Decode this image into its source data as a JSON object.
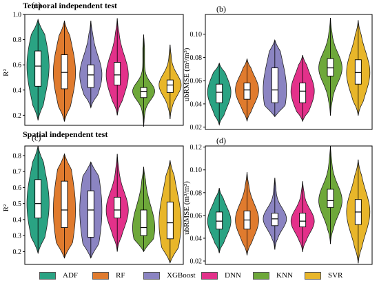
{
  "section_titles": {
    "temporal": "Temporal independent test",
    "spatial": "Spatial independent test"
  },
  "legend": [
    {
      "name": "ADF",
      "color": "#2aa383"
    },
    {
      "name": "RF",
      "color": "#e07b2e"
    },
    {
      "name": "XGBoost",
      "color": "#8b84c2"
    },
    {
      "name": "DNN",
      "color": "#e3318a"
    },
    {
      "name": "KNN",
      "color": "#6ea83a"
    },
    {
      "name": "SVR",
      "color": "#e8b62a"
    }
  ],
  "chart_data": [
    {
      "type": "violin",
      "panel": "(a)",
      "categories": [
        "ADF",
        "RF",
        "XGBoost",
        "DNN",
        "KNN",
        "SVR"
      ],
      "ylabel": "R²",
      "ylim": [
        0.12,
        1.0
      ],
      "yticks": [
        0.2,
        0.4,
        0.6,
        0.8,
        1.0
      ],
      "ytick_labels": [
        "0.2",
        "0.4",
        "0.6",
        "0.8",
        "1.0"
      ],
      "series": [
        {
          "min": 0.16,
          "q1": 0.43,
          "median": 0.59,
          "q3": 0.71,
          "max": 0.96
        },
        {
          "min": 0.15,
          "q1": 0.41,
          "median": 0.54,
          "q3": 0.68,
          "max": 0.95
        },
        {
          "min": 0.26,
          "q1": 0.42,
          "median": 0.52,
          "q3": 0.6,
          "max": 0.95
        },
        {
          "min": 0.2,
          "q1": 0.44,
          "median": 0.52,
          "q3": 0.62,
          "max": 0.97
        },
        {
          "min": 0.11,
          "q1": 0.34,
          "median": 0.39,
          "q3": 0.42,
          "max": 0.84
        },
        {
          "min": 0.17,
          "q1": 0.38,
          "median": 0.44,
          "q3": 0.48,
          "max": 0.76
        }
      ]
    },
    {
      "type": "violin",
      "panel": "(b)",
      "categories": [
        "ADF",
        "RF",
        "XGBoost",
        "DNN",
        "KNN",
        "SVR"
      ],
      "ylabel": "ubRMSE (m³/m³)",
      "ylim": [
        0.018,
        0.117
      ],
      "yticks": [
        0.02,
        0.04,
        0.06,
        0.08,
        0.1
      ],
      "ytick_labels": [
        "0.02",
        "0.04",
        "0.06",
        "0.08",
        "0.10"
      ],
      "series": [
        {
          "min": 0.022,
          "q1": 0.041,
          "median": 0.05,
          "q3": 0.057,
          "max": 0.075
        },
        {
          "min": 0.025,
          "q1": 0.044,
          "median": 0.052,
          "q3": 0.058,
          "max": 0.079
        },
        {
          "min": 0.029,
          "q1": 0.041,
          "median": 0.052,
          "q3": 0.071,
          "max": 0.095
        },
        {
          "min": 0.025,
          "q1": 0.041,
          "median": 0.051,
          "q3": 0.058,
          "max": 0.082
        },
        {
          "min": 0.03,
          "q1": 0.064,
          "median": 0.071,
          "q3": 0.079,
          "max": 0.114
        },
        {
          "min": 0.03,
          "q1": 0.057,
          "median": 0.067,
          "q3": 0.078,
          "max": 0.112
        }
      ]
    },
    {
      "type": "violin",
      "panel": "(c)",
      "categories": [
        "ADF",
        "RF",
        "XGBoost",
        "DNN",
        "KNN",
        "SVR"
      ],
      "ylabel": "R²",
      "ylim": [
        0.12,
        0.86
      ],
      "yticks": [
        0.2,
        0.3,
        0.4,
        0.5,
        0.6,
        0.7,
        0.8
      ],
      "ytick_labels": [
        "0.2",
        "0.3",
        "0.4",
        "0.5",
        "0.6",
        "0.7",
        "0.8"
      ],
      "series": [
        {
          "min": 0.19,
          "q1": 0.41,
          "median": 0.5,
          "q3": 0.65,
          "max": 0.86
        },
        {
          "min": 0.16,
          "q1": 0.35,
          "median": 0.46,
          "q3": 0.64,
          "max": 0.81
        },
        {
          "min": 0.16,
          "q1": 0.29,
          "median": 0.46,
          "q3": 0.58,
          "max": 0.76
        },
        {
          "min": 0.2,
          "q1": 0.41,
          "median": 0.46,
          "q3": 0.54,
          "max": 0.81
        },
        {
          "min": 0.2,
          "q1": 0.3,
          "median": 0.35,
          "q3": 0.46,
          "max": 0.73
        },
        {
          "min": 0.13,
          "q1": 0.28,
          "median": 0.38,
          "q3": 0.51,
          "max": 0.77
        }
      ]
    },
    {
      "type": "violin",
      "panel": "(d)",
      "categories": [
        "ADF",
        "RF",
        "XGBoost",
        "DNN",
        "KNN",
        "SVR"
      ],
      "ylabel": "ubRMSE (m³/m³)",
      "ylim": [
        0.017,
        0.121
      ],
      "yticks": [
        0.02,
        0.04,
        0.06,
        0.08,
        0.1,
        0.12
      ],
      "ytick_labels": [
        "0.02",
        "0.04",
        "0.06",
        "0.08",
        "0.10",
        "0.12"
      ],
      "series": [
        {
          "min": 0.027,
          "q1": 0.048,
          "median": 0.055,
          "q3": 0.063,
          "max": 0.084
        },
        {
          "min": 0.025,
          "q1": 0.048,
          "median": 0.056,
          "q3": 0.064,
          "max": 0.098
        },
        {
          "min": 0.03,
          "q1": 0.051,
          "median": 0.057,
          "q3": 0.062,
          "max": 0.093
        },
        {
          "min": 0.028,
          "q1": 0.05,
          "median": 0.055,
          "q3": 0.062,
          "max": 0.09
        },
        {
          "min": 0.035,
          "q1": 0.067,
          "median": 0.073,
          "q3": 0.083,
          "max": 0.121
        },
        {
          "min": 0.018,
          "q1": 0.052,
          "median": 0.063,
          "q3": 0.074,
          "max": 0.109
        }
      ]
    }
  ]
}
